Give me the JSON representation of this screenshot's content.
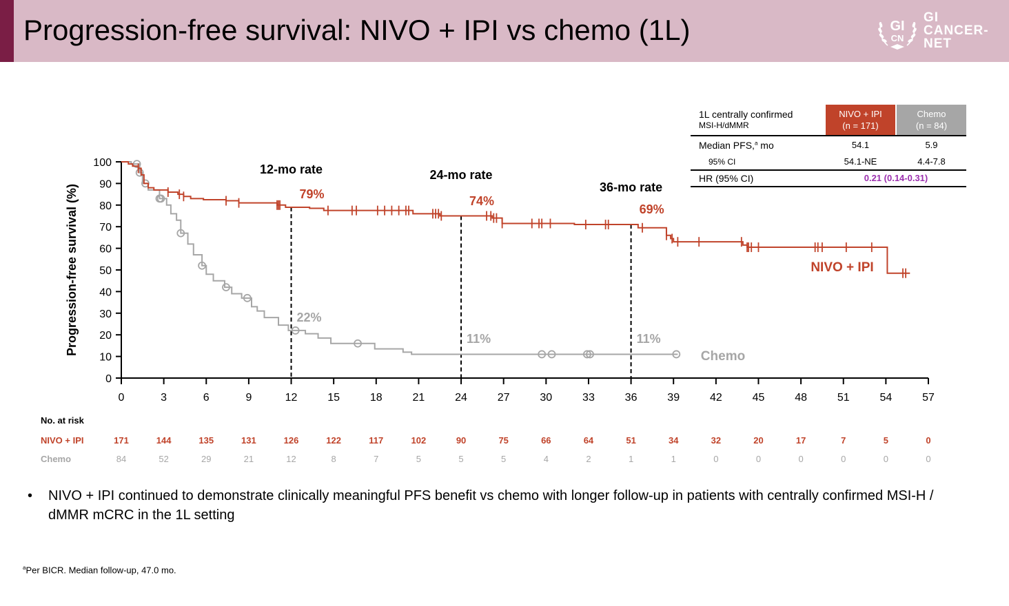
{
  "header": {
    "title": "Progression-free survival: NIVO + IPI vs chemo (1L)",
    "logo": {
      "emblem_top": "GI",
      "emblem_bottom": "CN",
      "line1": "GI",
      "line2": "CANCER-",
      "line3": "NET",
      "icon": "laurel-wreath-icon"
    }
  },
  "colors": {
    "nivo": "#c0432a",
    "chemo": "#a6a6a6",
    "hr": "#9b2fae",
    "header_bg": "#d9b9c6",
    "header_accent": "#7a1e45"
  },
  "summary_table": {
    "header_label": "1L centrally confirmed",
    "header_sublabel": "MSI-H/dMMR",
    "col1": {
      "name": "NIVO + IPI",
      "n": "(n = 171)"
    },
    "col2": {
      "name": "Chemo",
      "n": "(n = 84)"
    },
    "rows": [
      {
        "label": "Median PFS,",
        "sup": "a",
        "label_suffix": " mo",
        "v1": "54.1",
        "v2": "5.9"
      },
      {
        "label": "95% CI",
        "v1": "54.1-NE",
        "v2": "4.4-7.8"
      }
    ],
    "hr_label": "HR (95% CI)",
    "hr_value": "0.21 (0.14-0.31)"
  },
  "chart_data": {
    "type": "line",
    "subtype": "kaplan-meier",
    "title": "",
    "xlabel": "",
    "ylabel": "Progression-free survival (%)",
    "xlim": [
      0,
      57
    ],
    "ylim": [
      0,
      100
    ],
    "xticks": [
      0,
      3,
      6,
      9,
      12,
      15,
      18,
      21,
      24,
      27,
      30,
      33,
      36,
      39,
      42,
      45,
      48,
      51,
      54,
      57
    ],
    "yticks": [
      0,
      10,
      20,
      30,
      40,
      50,
      60,
      70,
      80,
      90,
      100
    ],
    "grid": false,
    "landmarks": [
      {
        "month": 12,
        "label": "12-mo rate",
        "nivo": "79%",
        "chemo": "22%"
      },
      {
        "month": 24,
        "label": "24-mo rate",
        "nivo": "74%",
        "chemo": "11%"
      },
      {
        "month": 36,
        "label": "36-mo rate",
        "nivo": "69%",
        "chemo": "11%"
      }
    ],
    "series": [
      {
        "name": "NIVO + IPI",
        "label": "NIVO + IPI",
        "steps": [
          [
            0,
            100
          ],
          [
            0.5,
            99
          ],
          [
            0.8,
            98
          ],
          [
            1.2,
            97
          ],
          [
            1.4,
            94
          ],
          [
            1.6,
            90
          ],
          [
            1.9,
            88
          ],
          [
            2.3,
            87
          ],
          [
            3.3,
            86
          ],
          [
            4.0,
            85
          ],
          [
            4.4,
            84
          ],
          [
            4.9,
            83
          ],
          [
            5.8,
            82.5
          ],
          [
            7.4,
            82
          ],
          [
            8.3,
            81
          ],
          [
            11.0,
            80
          ],
          [
            11.6,
            79
          ],
          [
            13.3,
            78.5
          ],
          [
            14.3,
            77.5
          ],
          [
            20.6,
            76
          ],
          [
            22.5,
            75
          ],
          [
            26.2,
            74
          ],
          [
            26.9,
            71.5
          ],
          [
            32.0,
            71
          ],
          [
            36.5,
            69.5
          ],
          [
            38.5,
            66
          ],
          [
            38.8,
            64.5
          ],
          [
            39.0,
            63
          ],
          [
            43.9,
            61.5
          ],
          [
            44.2,
            60.5
          ],
          [
            53.1,
            60.5
          ],
          [
            53.1,
            60.5
          ],
          [
            54.1,
            48.5
          ],
          [
            55.7,
            48.5
          ]
        ],
        "censors": [
          1.2,
          3.3,
          4.1,
          4.4,
          7.4,
          8.3,
          11.0,
          11.1,
          11.2,
          14.6,
          16.3,
          16.6,
          18.1,
          18.6,
          19.1,
          19.6,
          20.1,
          20.3,
          22.0,
          22.2,
          22.4,
          22.6,
          25.8,
          26.1,
          26.3,
          26.5,
          26.9,
          29.0,
          29.5,
          29.7,
          30.3,
          32.8,
          34.2,
          34.4,
          36.8,
          38.5,
          38.9,
          39.3,
          40.8,
          43.8,
          44.2,
          44.3,
          44.5,
          45.0,
          49.0,
          49.2,
          49.5,
          51.2,
          53.0,
          55.2,
          55.4
        ]
      },
      {
        "name": "Chemo",
        "label": "Chemo",
        "steps": [
          [
            0,
            100
          ],
          [
            0.7,
            99
          ],
          [
            1.3,
            95
          ],
          [
            1.5,
            90
          ],
          [
            1.9,
            87
          ],
          [
            2.7,
            83
          ],
          [
            3.2,
            80
          ],
          [
            3.5,
            76
          ],
          [
            3.9,
            73
          ],
          [
            4.2,
            67
          ],
          [
            4.7,
            62
          ],
          [
            5.1,
            57
          ],
          [
            5.7,
            52
          ],
          [
            6.0,
            48
          ],
          [
            6.5,
            45
          ],
          [
            7.3,
            42
          ],
          [
            7.8,
            39
          ],
          [
            8.5,
            37
          ],
          [
            9.2,
            33
          ],
          [
            9.6,
            31
          ],
          [
            10.1,
            28
          ],
          [
            11.1,
            24.5
          ],
          [
            11.8,
            22
          ],
          [
            13.0,
            20.5
          ],
          [
            13.9,
            18.5
          ],
          [
            14.8,
            16
          ],
          [
            17.9,
            13.5
          ],
          [
            19.9,
            12
          ],
          [
            20.5,
            11
          ],
          [
            39.3,
            11
          ]
        ],
        "censors": [
          1.1,
          1.3,
          1.7,
          2.7,
          2.8,
          4.2,
          5.7,
          7.4,
          8.9,
          12.3,
          16.7,
          29.7,
          30.4,
          32.9,
          33.1,
          39.2
        ]
      }
    ],
    "risk_table": {
      "title": "No. at risk",
      "times": [
        0,
        3,
        6,
        9,
        12,
        15,
        18,
        21,
        24,
        27,
        30,
        33,
        36,
        39,
        42,
        45,
        48,
        51,
        54,
        57
      ],
      "rows": [
        {
          "name": "NIVO + IPI",
          "values": [
            171,
            144,
            135,
            131,
            126,
            122,
            117,
            102,
            90,
            75,
            66,
            64,
            51,
            34,
            32,
            20,
            17,
            7,
            5,
            0
          ]
        },
        {
          "name": "Chemo",
          "values": [
            84,
            52,
            29,
            21,
            12,
            8,
            7,
            5,
            5,
            5,
            4,
            2,
            1,
            1,
            0,
            0,
            0,
            0,
            0,
            0
          ]
        }
      ]
    }
  },
  "bullet": {
    "symbol": "•",
    "text": "NIVO + IPI continued to demonstrate clinically meaningful PFS benefit vs chemo with longer follow-up in patients with centrally confirmed MSI-H / dMMR mCRC in the 1L setting"
  },
  "footnote": {
    "sup": "a",
    "text": "Per BICR. Median follow-up, 47.0 mo."
  }
}
